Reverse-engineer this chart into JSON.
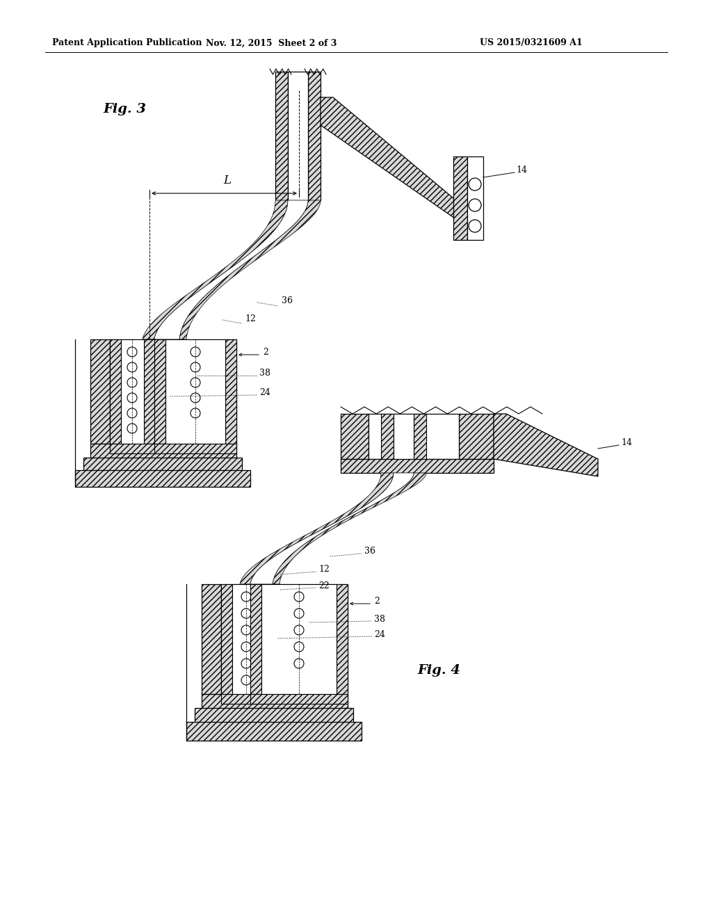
{
  "header_left": "Patent Application Publication",
  "header_mid": "Nov. 12, 2015  Sheet 2 of 3",
  "header_right": "US 2015/0321609 A1",
  "fig3_label": "Fig. 3",
  "fig4_label": "Fig. 4",
  "bg_color": "#ffffff",
  "line_color": "#000000"
}
